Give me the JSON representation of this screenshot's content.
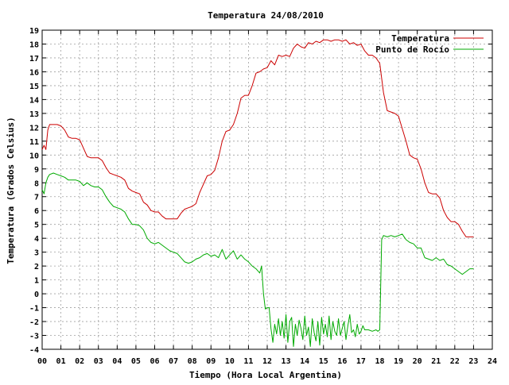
{
  "chart_data": {
    "type": "line",
    "title": "Temperatura 24/08/2010",
    "xlabel": "Tiempo (Hora Local Argentina)",
    "ylabel": "Temperatura (Grados Celsius)",
    "xlim": [
      0,
      24
    ],
    "ylim": [
      -4,
      19
    ],
    "x_ticks": [
      "00",
      "01",
      "02",
      "03",
      "04",
      "05",
      "06",
      "07",
      "08",
      "09",
      "10",
      "11",
      "12",
      "13",
      "14",
      "15",
      "16",
      "17",
      "18",
      "19",
      "20",
      "21",
      "22",
      "23",
      "24"
    ],
    "y_ticks": [
      "-4",
      "-3",
      "-2",
      "-1",
      "0",
      "1",
      "2",
      "3",
      "4",
      "5",
      "6",
      "7",
      "8",
      "9",
      "10",
      "11",
      "12",
      "13",
      "14",
      "15",
      "16",
      "17",
      "18",
      "19"
    ],
    "grid": true,
    "legend_position": "top-right",
    "colors": {
      "temperatura": "#cc0000",
      "punto_de_rocio": "#00aa00",
      "grid": "#a0a0a0",
      "axes": "#000000"
    },
    "series": [
      {
        "name": "Temperatura",
        "x": [
          0.0,
          0.1,
          0.2,
          0.3,
          0.4,
          0.6,
          0.8,
          1.0,
          1.2,
          1.4,
          1.6,
          1.8,
          2.0,
          2.2,
          2.4,
          2.6,
          2.8,
          3.0,
          3.2,
          3.4,
          3.6,
          3.8,
          4.0,
          4.2,
          4.4,
          4.6,
          4.8,
          5.0,
          5.2,
          5.4,
          5.6,
          5.8,
          6.0,
          6.2,
          6.4,
          6.6,
          6.8,
          7.0,
          7.2,
          7.4,
          7.6,
          7.8,
          8.0,
          8.2,
          8.4,
          8.6,
          8.8,
          9.0,
          9.2,
          9.4,
          9.6,
          9.8,
          10.0,
          10.2,
          10.4,
          10.6,
          10.8,
          11.0,
          11.2,
          11.4,
          11.6,
          11.8,
          12.0,
          12.2,
          12.4,
          12.6,
          12.8,
          13.0,
          13.2,
          13.4,
          13.6,
          13.8,
          14.0,
          14.2,
          14.4,
          14.6,
          14.8,
          15.0,
          15.2,
          15.4,
          15.6,
          15.8,
          16.0,
          16.2,
          16.4,
          16.6,
          16.8,
          17.0,
          17.2,
          17.4,
          17.6,
          17.8,
          18.0,
          18.2,
          18.4,
          18.6,
          18.8,
          19.0,
          19.2,
          19.4,
          19.6,
          19.8,
          20.0,
          20.2,
          20.4,
          20.6,
          20.8,
          21.0,
          21.2,
          21.4,
          21.6,
          21.8,
          22.0,
          22.2,
          22.4,
          22.6,
          22.8,
          23.0
        ],
        "values": [
          10.4,
          10.7,
          10.4,
          11.8,
          12.2,
          12.2,
          12.2,
          12.1,
          11.8,
          11.3,
          11.2,
          11.2,
          11.1,
          10.5,
          9.9,
          9.8,
          9.8,
          9.8,
          9.6,
          9.1,
          8.7,
          8.6,
          8.5,
          8.4,
          8.2,
          7.6,
          7.4,
          7.3,
          7.2,
          6.6,
          6.4,
          6.0,
          5.9,
          5.9,
          5.6,
          5.4,
          5.4,
          5.4,
          5.4,
          5.8,
          6.1,
          6.2,
          6.3,
          6.5,
          7.3,
          7.9,
          8.5,
          8.6,
          8.9,
          9.8,
          11.0,
          11.7,
          11.8,
          12.2,
          13.0,
          14.1,
          14.3,
          14.3,
          15.0,
          15.9,
          16.0,
          16.2,
          16.3,
          16.8,
          16.5,
          17.2,
          17.1,
          17.2,
          17.1,
          17.7,
          18.0,
          17.8,
          17.7,
          18.1,
          18.0,
          18.2,
          18.1,
          18.3,
          18.3,
          18.2,
          18.3,
          18.3,
          18.2,
          18.3,
          18.0,
          18.1,
          17.9,
          18.0,
          17.5,
          17.2,
          17.2,
          17.0,
          16.6,
          14.5,
          13.2,
          13.1,
          13.0,
          12.8,
          11.9,
          11.0,
          10.0,
          9.8,
          9.7,
          9.0,
          8.0,
          7.3,
          7.2,
          7.2,
          6.9,
          6.0,
          5.5,
          5.2,
          5.2,
          5.0,
          4.5,
          4.1,
          4.1,
          4.1
        ]
      },
      {
        "name": "Punto de Rocío",
        "x": [
          0.0,
          0.1,
          0.2,
          0.3,
          0.4,
          0.6,
          0.8,
          1.0,
          1.2,
          1.4,
          1.6,
          1.8,
          2.0,
          2.2,
          2.4,
          2.6,
          2.8,
          3.0,
          3.2,
          3.4,
          3.6,
          3.8,
          4.0,
          4.2,
          4.4,
          4.6,
          4.8,
          5.0,
          5.2,
          5.4,
          5.6,
          5.8,
          6.0,
          6.2,
          6.4,
          6.6,
          6.8,
          7.0,
          7.2,
          7.4,
          7.6,
          7.8,
          8.0,
          8.2,
          8.4,
          8.6,
          8.8,
          9.0,
          9.2,
          9.4,
          9.6,
          9.8,
          10.0,
          10.2,
          10.4,
          10.6,
          10.8,
          11.0,
          11.2,
          11.4,
          11.6,
          11.7,
          11.8,
          11.9,
          12.0,
          12.1,
          12.2,
          12.3,
          12.4,
          12.5,
          12.6,
          12.7,
          12.8,
          12.9,
          13.0,
          13.1,
          13.2,
          13.3,
          13.4,
          13.5,
          13.6,
          13.7,
          13.8,
          13.9,
          14.0,
          14.1,
          14.2,
          14.3,
          14.4,
          14.5,
          14.6,
          14.7,
          14.8,
          14.9,
          15.0,
          15.1,
          15.2,
          15.3,
          15.4,
          15.5,
          15.6,
          15.7,
          15.8,
          15.9,
          16.0,
          16.1,
          16.2,
          16.3,
          16.4,
          16.5,
          16.6,
          16.7,
          16.8,
          16.9,
          17.0,
          17.1,
          17.2,
          17.4,
          17.6,
          17.8,
          17.9,
          18.0,
          18.1,
          18.2,
          18.4,
          18.6,
          18.8,
          19.0,
          19.2,
          19.4,
          19.6,
          19.8,
          20.0,
          20.2,
          20.4,
          20.6,
          20.8,
          21.0,
          21.2,
          21.4,
          21.6,
          21.8,
          22.0,
          22.2,
          22.4,
          22.6,
          22.8,
          23.0
        ],
        "values": [
          7.5,
          7.2,
          8.0,
          8.4,
          8.6,
          8.7,
          8.6,
          8.5,
          8.4,
          8.2,
          8.2,
          8.2,
          8.1,
          7.8,
          8.0,
          7.8,
          7.7,
          7.7,
          7.5,
          7.0,
          6.6,
          6.3,
          6.2,
          6.1,
          5.9,
          5.4,
          5.0,
          5.0,
          4.9,
          4.6,
          4.0,
          3.7,
          3.6,
          3.7,
          3.5,
          3.3,
          3.1,
          3.0,
          2.9,
          2.6,
          2.3,
          2.2,
          2.3,
          2.5,
          2.6,
          2.8,
          2.9,
          2.7,
          2.8,
          2.6,
          3.2,
          2.5,
          2.8,
          3.1,
          2.5,
          2.8,
          2.5,
          2.3,
          2.0,
          1.8,
          1.5,
          2.0,
          0.0,
          -1.1,
          -1.0,
          -1.0,
          -2.5,
          -3.5,
          -2.2,
          -2.9,
          -1.8,
          -3.0,
          -2.0,
          -3.2,
          -1.5,
          -3.5,
          -2.0,
          -1.7,
          -3.8,
          -2.2,
          -3.0,
          -1.9,
          -2.5,
          -3.3,
          -1.6,
          -3.0,
          -2.4,
          -3.8,
          -1.8,
          -2.8,
          -3.4,
          -2.0,
          -3.7,
          -1.7,
          -2.9,
          -2.2,
          -3.1,
          -1.6,
          -3.3,
          -2.0,
          -2.7,
          -3.0,
          -1.8,
          -3.0,
          -2.5,
          -2.0,
          -3.3,
          -2.3,
          -1.5,
          -2.8,
          -2.6,
          -3.1,
          -2.2,
          -2.9,
          -2.7,
          -2.3,
          -2.6,
          -2.6,
          -2.7,
          -2.6,
          -2.7,
          -2.6,
          3.9,
          4.2,
          4.1,
          4.2,
          4.1,
          4.2,
          4.3,
          3.9,
          3.7,
          3.6,
          3.3,
          3.3,
          2.6,
          2.5,
          2.4,
          2.6,
          2.4,
          2.5,
          2.1,
          2.0,
          1.8,
          1.6,
          1.4,
          1.6,
          1.8,
          1.8
        ]
      }
    ]
  }
}
